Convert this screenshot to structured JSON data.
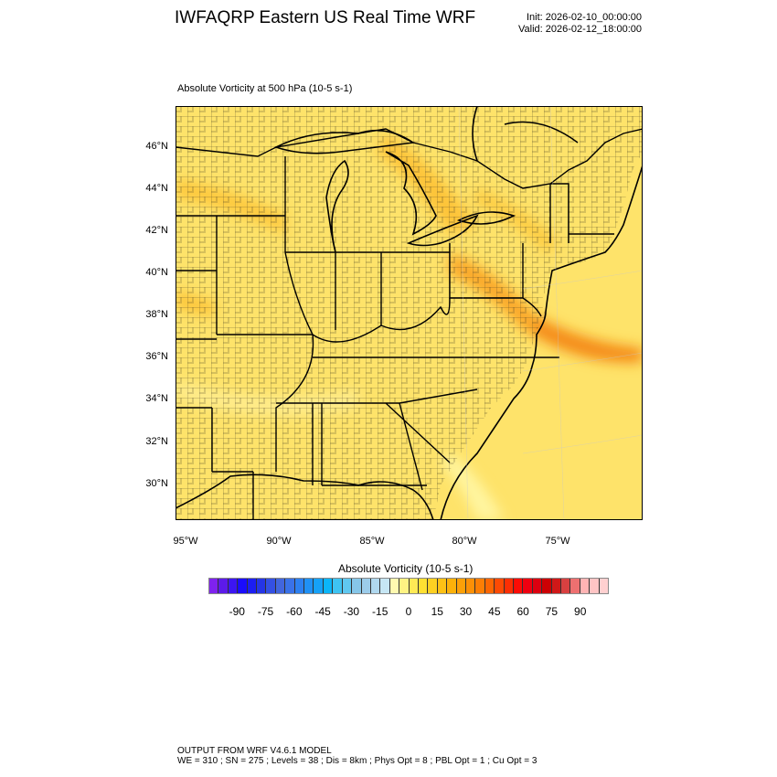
{
  "header": {
    "title": "IWFAQRP Eastern US Real Time WRF",
    "init": "Init: 2026-02-10_00:00:00",
    "valid": "Valid: 2026-02-12_18:00:00",
    "subtitle": "Absolute Vorticity at 500 hPa   (10-5 s-1)"
  },
  "map": {
    "field": "Absolute Vorticity at 500 hPa",
    "lat_labels": [
      "46°N",
      "44°N",
      "42°N",
      "40°N",
      "38°N",
      "36°N",
      "34°N",
      "32°N",
      "30°N"
    ],
    "lon_labels": [
      "95°W",
      "90°W",
      "85°W",
      "80°W",
      "75°W"
    ],
    "background_color": "#fee36a",
    "max_color": "#f7941d"
  },
  "colorbar": {
    "title": "Absolute Vorticity  (10-5 s-1)",
    "tick_labels": [
      "-90",
      "-75",
      "-60",
      "-45",
      "-30",
      "-15",
      "0",
      "15",
      "30",
      "45",
      "60",
      "75",
      "90"
    ],
    "colors": [
      "#7f22ee",
      "#5c1ae9",
      "#3c15f2",
      "#1a0cfd",
      "#1c1ef2",
      "#2535e6",
      "#3450e3",
      "#4266dd",
      "#3a72e8",
      "#2d80f0",
      "#2091f5",
      "#16a1f7",
      "#0bb5f9",
      "#3ec3f2",
      "#60c8f0",
      "#86c6e8",
      "#9cccea",
      "#b0d8ef",
      "#c6e6f4",
      "#fff9b0",
      "#fff383",
      "#ffea55",
      "#ffe032",
      "#fdd022",
      "#fdc115",
      "#fcb10a",
      "#fca008",
      "#fc9006",
      "#fc7e04",
      "#fc6602",
      "#fc4a04",
      "#fc2e04",
      "#fc0c06",
      "#ee0010",
      "#dc0010",
      "#cc0004",
      "#d01818",
      "#d84040",
      "#ee7070",
      "#ffb4b4",
      "#ffc4c4",
      "#ffd0d0"
    ]
  },
  "footer": {
    "line1": "OUTPUT FROM WRF V4.6.1 MODEL",
    "line2": "WE = 310 ; SN = 275 ; Levels = 38 ; Dis = 8km ; Phys Opt = 8 ; PBL Opt = 1 ; Cu Opt = 3"
  }
}
